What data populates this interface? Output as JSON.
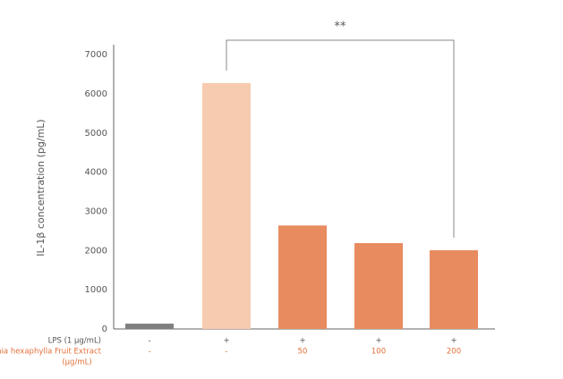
{
  "chart_data": {
    "type": "bar",
    "y_label": "IL-1β concentration (pg/mL)",
    "categories": [
      null,
      null,
      null,
      null,
      null
    ],
    "values": [
      135,
      6275,
      2640,
      2190,
      2010
    ],
    "colors": [
      "#7f7f7f",
      "#f7cbb0",
      "#e88b5f",
      "#e88b5f",
      "#e88b5f"
    ],
    "ylim": [
      0,
      7300
    ],
    "yticks": [
      0,
      1000,
      2000,
      3000,
      4000,
      5000,
      6000,
      7000
    ],
    "grid": false,
    "condition_rows": [
      {
        "label": "LPS (1 μg/mL)",
        "color": "#555555",
        "cells": [
          "-",
          "+",
          "+",
          "+",
          "+"
        ]
      },
      {
        "label": "Stauntonia hexaphylla Fruit Extract",
        "sublabel": "(μg/mL)",
        "color": "#e2703a",
        "cells": [
          "-",
          "-",
          "50",
          "100",
          "200"
        ]
      }
    ],
    "significance": {
      "text": "**",
      "from": 1,
      "to": 4
    }
  }
}
